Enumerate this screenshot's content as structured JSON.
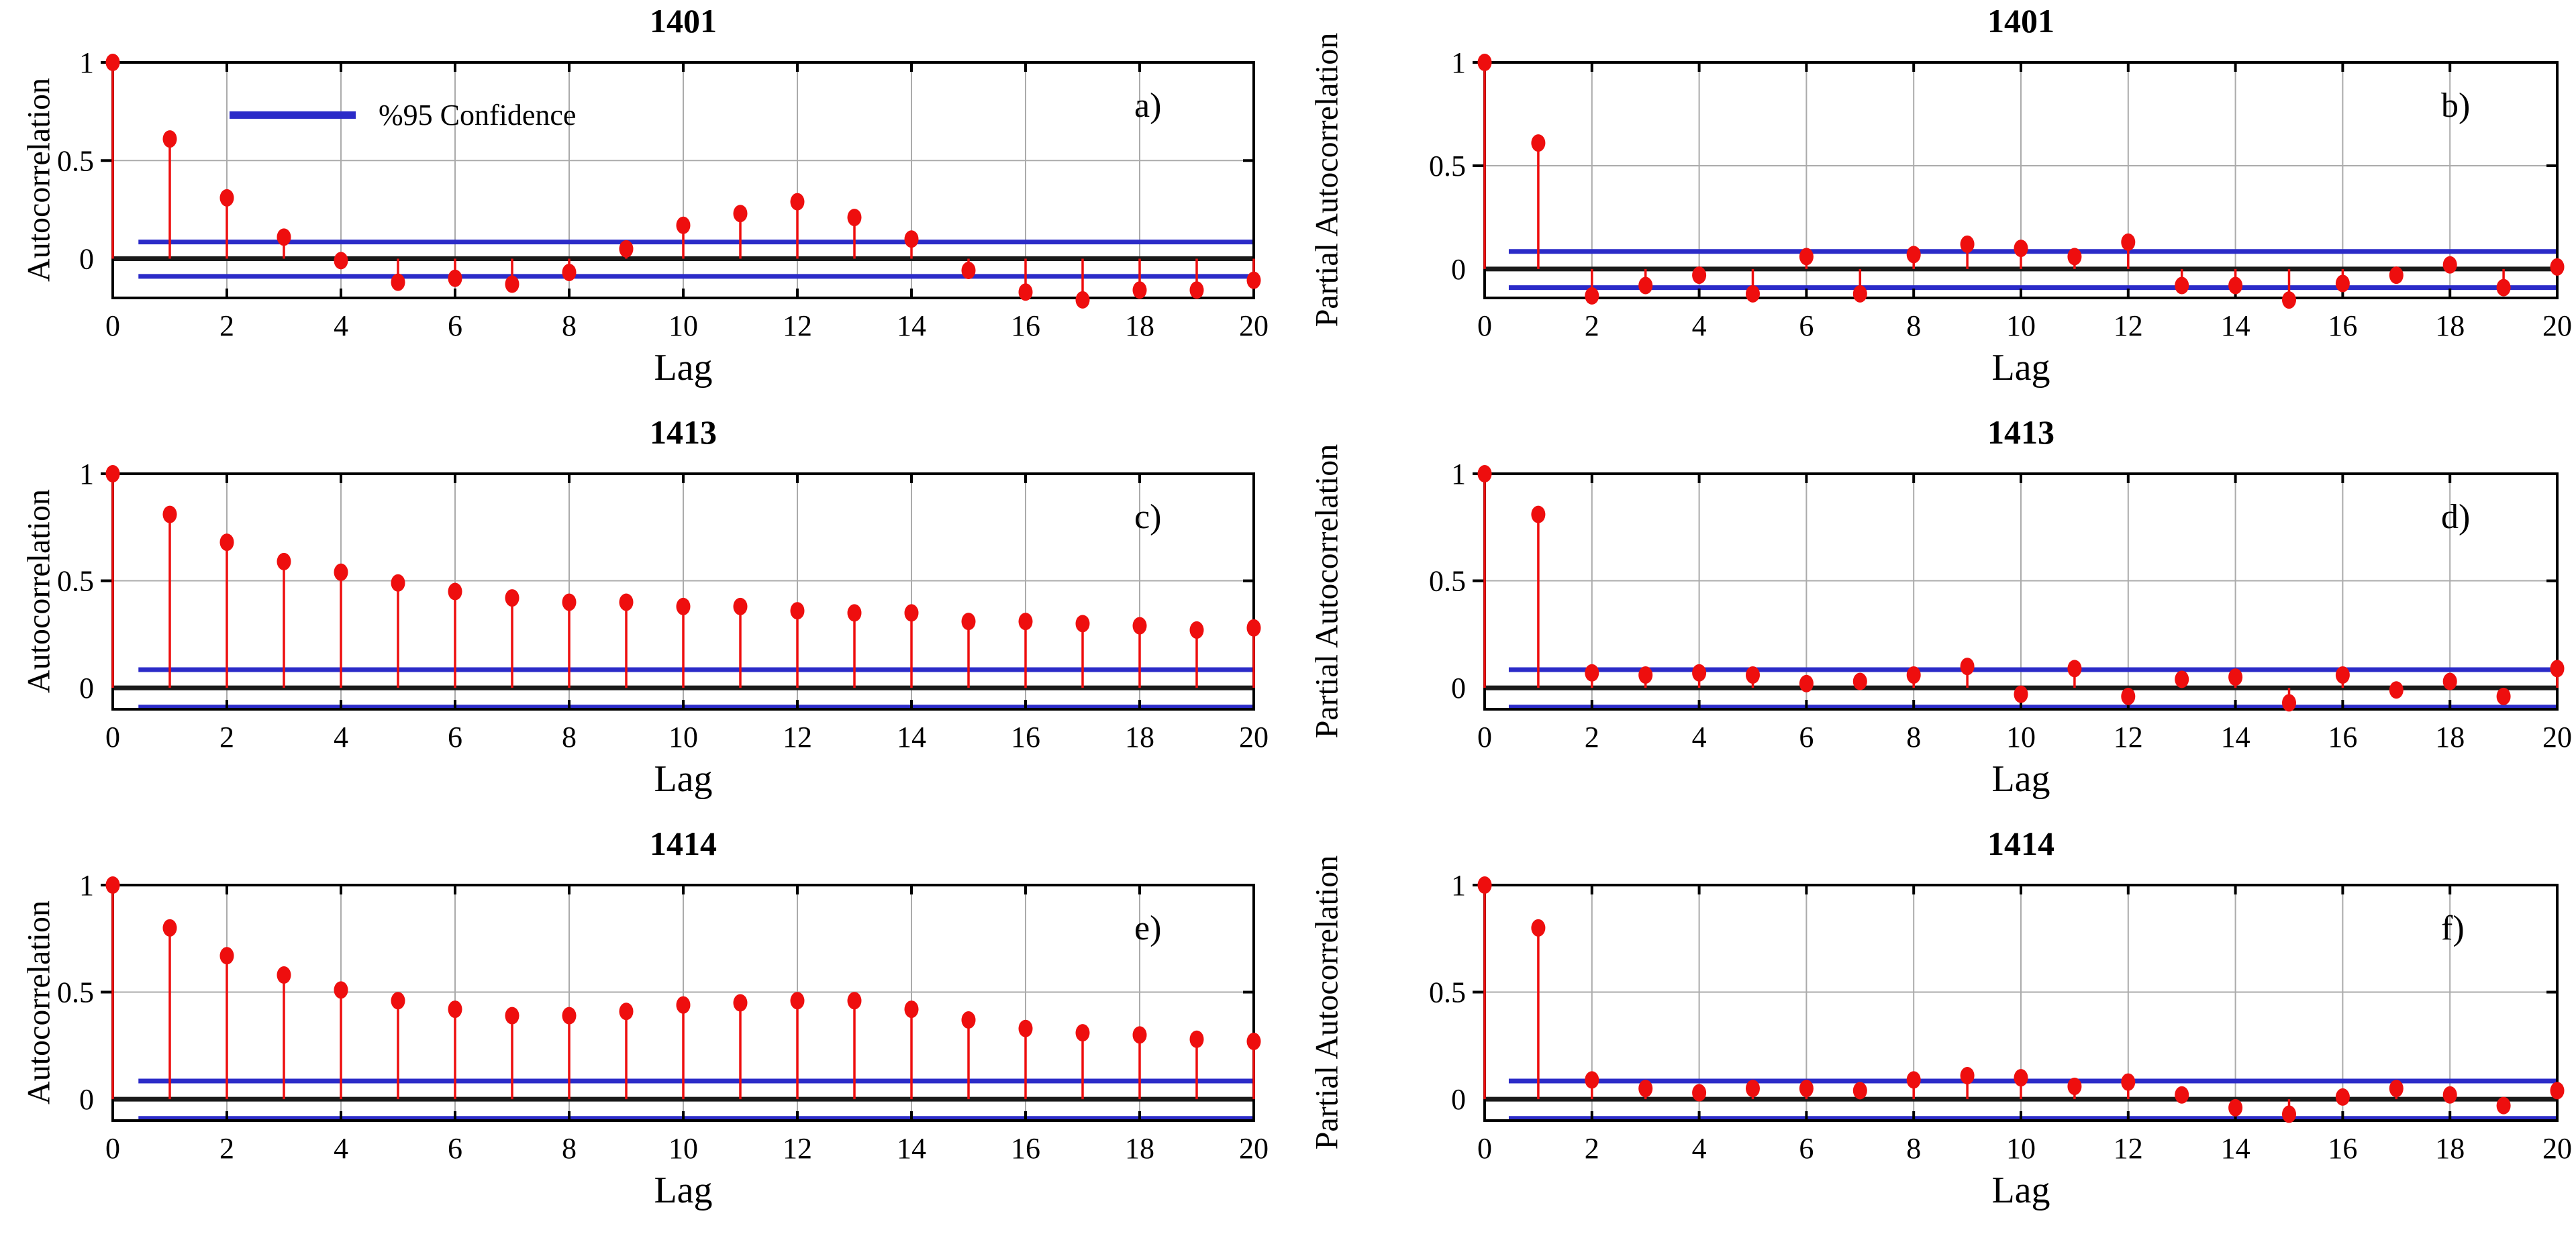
{
  "colors": {
    "stem": "#ee0e0e",
    "confidence_line": "#2b2bc8",
    "zero_line": "#1a1a1a",
    "frame": "#000000",
    "gridline": "#ababab",
    "text": "#000000"
  },
  "chart_data": {
    "type": "stem",
    "figure": "ACF and PACF stem plots for stations 1401, 1413, 1414",
    "xlabel": "Lag",
    "xlim": [
      0,
      20
    ],
    "xticks": [
      0,
      2,
      4,
      6,
      8,
      10,
      12,
      14,
      16,
      18,
      20
    ],
    "yticks": [
      1,
      0.5,
      0
    ],
    "ytick_labels": [
      "1",
      "0.5",
      "0"
    ],
    "grid": true,
    "confidence": {
      "label": "%95 Confidence",
      "upper": 0.085,
      "lower": -0.09,
      "legend_panel": "a",
      "legend_position": "upper-left"
    },
    "lags": [
      0,
      1,
      2,
      3,
      4,
      5,
      6,
      7,
      8,
      9,
      10,
      11,
      12,
      13,
      14,
      15,
      16,
      17,
      18,
      19,
      20
    ],
    "panels": [
      {
        "title": "1401",
        "letter": "a)",
        "ylabel": "Autocorrelation",
        "ymin": -0.2,
        "ymax": 1.0,
        "values": [
          1,
          0.61,
          0.31,
          0.11,
          -0.01,
          -0.12,
          -0.1,
          -0.13,
          -0.07,
          0.05,
          0.17,
          0.23,
          0.29,
          0.21,
          0.1,
          -0.06,
          -0.17,
          -0.21,
          -0.16,
          -0.16,
          -0.11
        ]
      },
      {
        "title": "1401",
        "letter": "b)",
        "ylabel": "Partial Autocorrelation",
        "ymin": -0.14,
        "ymax": 1.0,
        "values": [
          1,
          0.61,
          -0.13,
          -0.08,
          -0.03,
          -0.12,
          0.06,
          -0.12,
          0.07,
          0.12,
          0.1,
          0.06,
          0.13,
          -0.08,
          -0.08,
          -0.15,
          -0.07,
          -0.03,
          0.02,
          -0.09,
          0.01
        ]
      },
      {
        "title": "1413",
        "letter": "c)",
        "ylabel": "Autocorrelation",
        "ymin": -0.1,
        "ymax": 1.0,
        "values": [
          1,
          0.81,
          0.68,
          0.59,
          0.54,
          0.49,
          0.45,
          0.42,
          0.4,
          0.4,
          0.38,
          0.38,
          0.36,
          0.35,
          0.35,
          0.31,
          0.31,
          0.3,
          0.29,
          0.27,
          0.28
        ]
      },
      {
        "title": "1413",
        "letter": "d)",
        "ylabel": "Partial Autocorrelation",
        "ymin": -0.1,
        "ymax": 1.0,
        "values": [
          1,
          0.81,
          0.07,
          0.06,
          0.07,
          0.06,
          0.02,
          0.03,
          0.06,
          0.1,
          -0.03,
          0.09,
          -0.04,
          0.04,
          0.05,
          -0.07,
          0.06,
          -0.01,
          0.03,
          -0.04,
          0.09
        ]
      },
      {
        "title": "1414",
        "letter": "e)",
        "ylabel": "Autocorrelation",
        "ymin": -0.1,
        "ymax": 1.0,
        "values": [
          1,
          0.8,
          0.67,
          0.58,
          0.51,
          0.46,
          0.42,
          0.39,
          0.39,
          0.41,
          0.44,
          0.45,
          0.46,
          0.46,
          0.42,
          0.37,
          0.33,
          0.31,
          0.3,
          0.28,
          0.27
        ]
      },
      {
        "title": "1414",
        "letter": "f)",
        "ylabel": "Partial Autocorrelation",
        "ymin": -0.1,
        "ymax": 1.0,
        "values": [
          1,
          0.8,
          0.09,
          0.05,
          0.03,
          0.05,
          0.05,
          0.04,
          0.09,
          0.11,
          0.1,
          0.06,
          0.08,
          0.02,
          -0.04,
          -0.07,
          0.01,
          0.05,
          0.02,
          -0.03,
          0.04
        ]
      }
    ]
  }
}
